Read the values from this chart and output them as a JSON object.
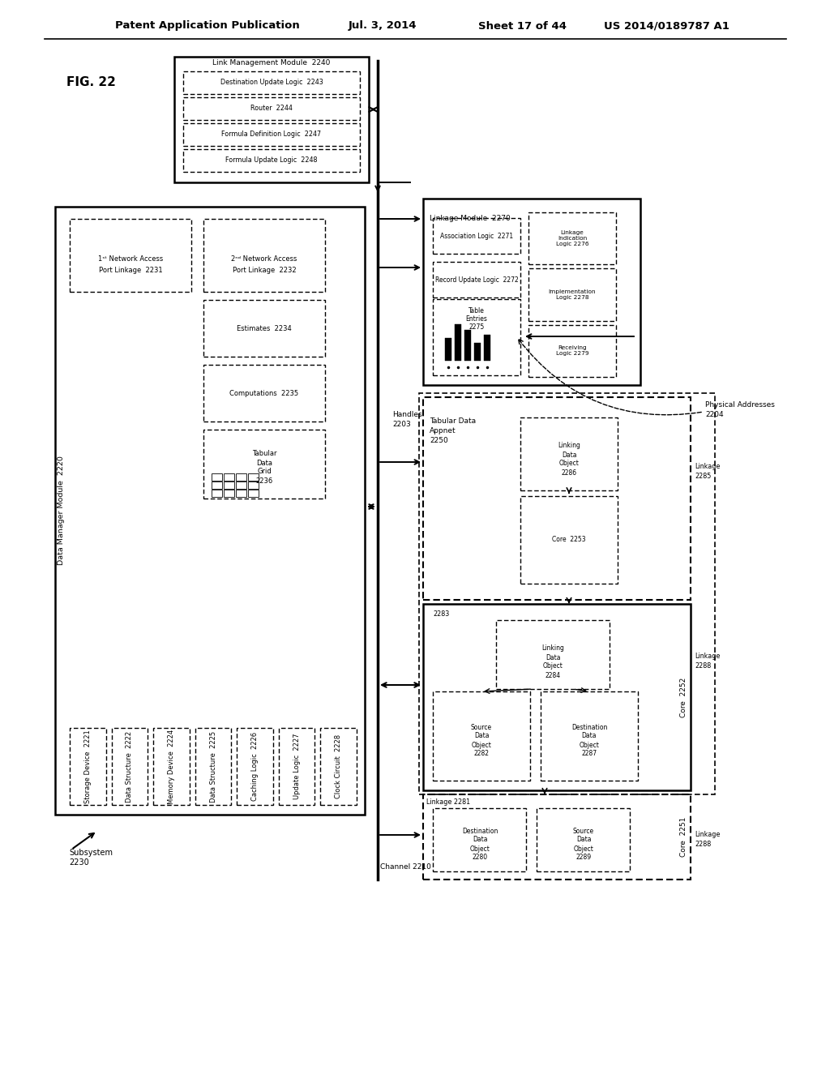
{
  "header_left": "Patent Application Publication",
  "header_mid": "Jul. 3, 2014   Sheet 17 of 44",
  "header_right": "US 2014/0189787 A1",
  "fig_label": "FIG. 22",
  "bg_color": "#ffffff"
}
